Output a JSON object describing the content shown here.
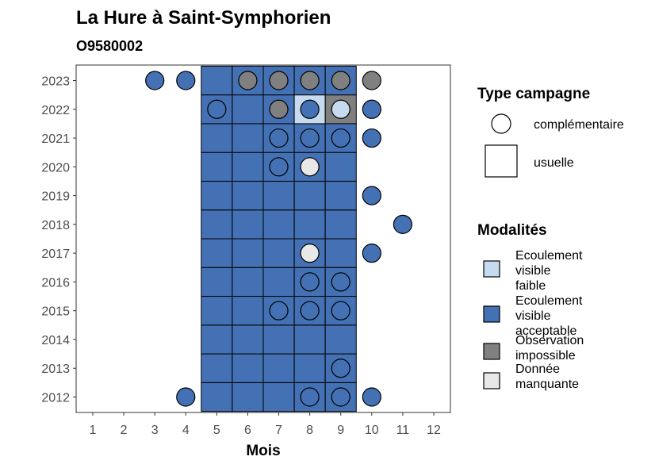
{
  "chart_data": {
    "type": "heatmap",
    "title": "La Hure à Saint-Symphorien",
    "subtitle": "O9580002",
    "xlabel": "Mois",
    "ylabel": "",
    "x_ticks": [
      "1",
      "2",
      "3",
      "4",
      "5",
      "6",
      "7",
      "8",
      "9",
      "10",
      "11",
      "12"
    ],
    "y_ticks": [
      "2012",
      "2013",
      "2014",
      "2015",
      "2016",
      "2017",
      "2018",
      "2019",
      "2020",
      "2021",
      "2022",
      "2023"
    ],
    "xlim": [
      1,
      12
    ],
    "ylim": [
      2012,
      2023
    ],
    "grid": false,
    "colors": {
      "faible": "#c6dbef",
      "acceptable": "#4470b4",
      "impossible": "#808080",
      "manquante": "#e8e8e8"
    },
    "legend_type": {
      "title": "Type campagne",
      "placement": "right",
      "items": [
        {
          "key": "complementaire",
          "label": "complémentaire",
          "shape": "circle"
        },
        {
          "key": "usuelle",
          "label": "usuelle",
          "shape": "square"
        }
      ]
    },
    "legend_modalite": {
      "title": "Modalités",
      "placement": "right",
      "items": [
        {
          "key": "faible",
          "lines": [
            "Ecoulement",
            "visible",
            "faible"
          ]
        },
        {
          "key": "acceptable",
          "lines": [
            "Ecoulement",
            "visible",
            "acceptable"
          ]
        },
        {
          "key": "impossible",
          "lines": [
            "Observation",
            "impossible"
          ]
        },
        {
          "key": "manquante",
          "lines": [
            "Donnée",
            "manquante"
          ]
        }
      ]
    },
    "usuelle": [
      {
        "x": 5,
        "y": 2012,
        "m": "acceptable"
      },
      {
        "x": 6,
        "y": 2012,
        "m": "acceptable"
      },
      {
        "x": 7,
        "y": 2012,
        "m": "acceptable"
      },
      {
        "x": 8,
        "y": 2012,
        "m": "acceptable"
      },
      {
        "x": 9,
        "y": 2012,
        "m": "acceptable"
      },
      {
        "x": 5,
        "y": 2013,
        "m": "acceptable"
      },
      {
        "x": 6,
        "y": 2013,
        "m": "acceptable"
      },
      {
        "x": 7,
        "y": 2013,
        "m": "acceptable"
      },
      {
        "x": 8,
        "y": 2013,
        "m": "acceptable"
      },
      {
        "x": 9,
        "y": 2013,
        "m": "acceptable"
      },
      {
        "x": 5,
        "y": 2014,
        "m": "acceptable"
      },
      {
        "x": 6,
        "y": 2014,
        "m": "acceptable"
      },
      {
        "x": 7,
        "y": 2014,
        "m": "acceptable"
      },
      {
        "x": 8,
        "y": 2014,
        "m": "acceptable"
      },
      {
        "x": 9,
        "y": 2014,
        "m": "acceptable"
      },
      {
        "x": 5,
        "y": 2015,
        "m": "acceptable"
      },
      {
        "x": 6,
        "y": 2015,
        "m": "acceptable"
      },
      {
        "x": 7,
        "y": 2015,
        "m": "acceptable"
      },
      {
        "x": 8,
        "y": 2015,
        "m": "acceptable"
      },
      {
        "x": 9,
        "y": 2015,
        "m": "acceptable"
      },
      {
        "x": 5,
        "y": 2016,
        "m": "acceptable"
      },
      {
        "x": 6,
        "y": 2016,
        "m": "acceptable"
      },
      {
        "x": 7,
        "y": 2016,
        "m": "acceptable"
      },
      {
        "x": 8,
        "y": 2016,
        "m": "acceptable"
      },
      {
        "x": 9,
        "y": 2016,
        "m": "acceptable"
      },
      {
        "x": 5,
        "y": 2017,
        "m": "acceptable"
      },
      {
        "x": 6,
        "y": 2017,
        "m": "acceptable"
      },
      {
        "x": 7,
        "y": 2017,
        "m": "acceptable"
      },
      {
        "x": 8,
        "y": 2017,
        "m": "acceptable"
      },
      {
        "x": 9,
        "y": 2017,
        "m": "acceptable"
      },
      {
        "x": 5,
        "y": 2018,
        "m": "acceptable"
      },
      {
        "x": 6,
        "y": 2018,
        "m": "acceptable"
      },
      {
        "x": 7,
        "y": 2018,
        "m": "acceptable"
      },
      {
        "x": 8,
        "y": 2018,
        "m": "acceptable"
      },
      {
        "x": 9,
        "y": 2018,
        "m": "acceptable"
      },
      {
        "x": 5,
        "y": 2019,
        "m": "acceptable"
      },
      {
        "x": 6,
        "y": 2019,
        "m": "acceptable"
      },
      {
        "x": 7,
        "y": 2019,
        "m": "acceptable"
      },
      {
        "x": 8,
        "y": 2019,
        "m": "acceptable"
      },
      {
        "x": 9,
        "y": 2019,
        "m": "acceptable"
      },
      {
        "x": 5,
        "y": 2020,
        "m": "acceptable"
      },
      {
        "x": 6,
        "y": 2020,
        "m": "acceptable"
      },
      {
        "x": 7,
        "y": 2020,
        "m": "acceptable"
      },
      {
        "x": 8,
        "y": 2020,
        "m": "acceptable"
      },
      {
        "x": 9,
        "y": 2020,
        "m": "acceptable"
      },
      {
        "x": 5,
        "y": 2021,
        "m": "acceptable"
      },
      {
        "x": 6,
        "y": 2021,
        "m": "acceptable"
      },
      {
        "x": 7,
        "y": 2021,
        "m": "acceptable"
      },
      {
        "x": 8,
        "y": 2021,
        "m": "acceptable"
      },
      {
        "x": 9,
        "y": 2021,
        "m": "acceptable"
      },
      {
        "x": 5,
        "y": 2022,
        "m": "acceptable"
      },
      {
        "x": 6,
        "y": 2022,
        "m": "acceptable"
      },
      {
        "x": 7,
        "y": 2022,
        "m": "acceptable"
      },
      {
        "x": 8,
        "y": 2022,
        "m": "faible"
      },
      {
        "x": 9,
        "y": 2022,
        "m": "impossible"
      },
      {
        "x": 5,
        "y": 2023,
        "m": "acceptable"
      },
      {
        "x": 6,
        "y": 2023,
        "m": "acceptable"
      },
      {
        "x": 7,
        "y": 2023,
        "m": "acceptable"
      },
      {
        "x": 8,
        "y": 2023,
        "m": "acceptable"
      },
      {
        "x": 9,
        "y": 2023,
        "m": "acceptable"
      }
    ],
    "complementaire": [
      {
        "x": 3,
        "y": 2023,
        "m": "acceptable"
      },
      {
        "x": 4,
        "y": 2023,
        "m": "acceptable"
      },
      {
        "x": 6,
        "y": 2023,
        "m": "impossible"
      },
      {
        "x": 7,
        "y": 2023,
        "m": "impossible"
      },
      {
        "x": 8,
        "y": 2023,
        "m": "impossible"
      },
      {
        "x": 9,
        "y": 2023,
        "m": "impossible"
      },
      {
        "x": 10,
        "y": 2023,
        "m": "impossible"
      },
      {
        "x": 5,
        "y": 2022,
        "m": "acceptable"
      },
      {
        "x": 7,
        "y": 2022,
        "m": "impossible"
      },
      {
        "x": 8,
        "y": 2022,
        "m": "acceptable"
      },
      {
        "x": 9,
        "y": 2022,
        "m": "faible"
      },
      {
        "x": 10,
        "y": 2022,
        "m": "acceptable"
      },
      {
        "x": 7,
        "y": 2021,
        "m": "acceptable"
      },
      {
        "x": 8,
        "y": 2021,
        "m": "acceptable"
      },
      {
        "x": 9,
        "y": 2021,
        "m": "acceptable"
      },
      {
        "x": 10,
        "y": 2021,
        "m": "acceptable"
      },
      {
        "x": 7,
        "y": 2020,
        "m": "acceptable"
      },
      {
        "x": 8,
        "y": 2020,
        "m": "manquante"
      },
      {
        "x": 10,
        "y": 2019,
        "m": "acceptable"
      },
      {
        "x": 11,
        "y": 2018,
        "m": "acceptable"
      },
      {
        "x": 8,
        "y": 2017,
        "m": "manquante"
      },
      {
        "x": 10,
        "y": 2017,
        "m": "acceptable"
      },
      {
        "x": 8,
        "y": 2016,
        "m": "acceptable"
      },
      {
        "x": 9,
        "y": 2016,
        "m": "acceptable"
      },
      {
        "x": 7,
        "y": 2015,
        "m": "acceptable"
      },
      {
        "x": 8,
        "y": 2015,
        "m": "acceptable"
      },
      {
        "x": 9,
        "y": 2015,
        "m": "acceptable"
      },
      {
        "x": 9,
        "y": 2013,
        "m": "acceptable"
      },
      {
        "x": 4,
        "y": 2012,
        "m": "acceptable"
      },
      {
        "x": 8,
        "y": 2012,
        "m": "acceptable"
      },
      {
        "x": 9,
        "y": 2012,
        "m": "acceptable"
      },
      {
        "x": 10,
        "y": 2012,
        "m": "acceptable"
      }
    ]
  }
}
